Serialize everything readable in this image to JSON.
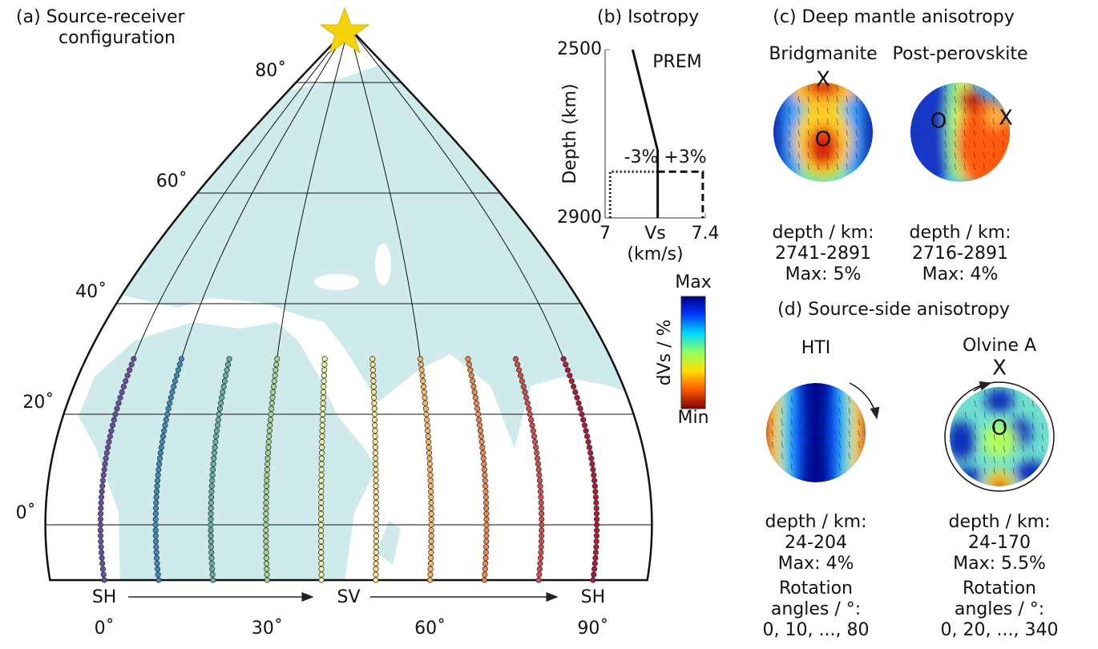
{
  "panel_a": {
    "title": [
      "(a) Source-receiver",
      "configuration"
    ],
    "xlim": [
      -10,
      100
    ],
    "ylim": [
      -10,
      90
    ],
    "lat_ticks": [
      {
        "value": 0,
        "label": "0˚"
      },
      {
        "value": 20,
        "label": "20˚"
      },
      {
        "value": 40,
        "label": "40˚"
      },
      {
        "value": 60,
        "label": "60˚"
      },
      {
        "value": 80,
        "label": "80˚"
      }
    ],
    "lon_ticks": [
      {
        "value": 0,
        "label": "0˚"
      },
      {
        "value": 30,
        "label": "30˚"
      },
      {
        "value": 60,
        "label": "60˚"
      },
      {
        "value": 90,
        "label": "90˚"
      }
    ],
    "station_lat": [
      -10,
      30
    ],
    "stations": [
      {
        "lon": 0,
        "color": "#6a4fa8"
      },
      {
        "lon": 10,
        "color": "#3d8cc0"
      },
      {
        "lon": 20,
        "color": "#62b3a0"
      },
      {
        "lon": 30,
        "color": "#a9d68f"
      },
      {
        "lon": 40,
        "color": "#eef2a2"
      },
      {
        "lon": 50,
        "color": "#fde68e"
      },
      {
        "lon": 60,
        "color": "#fdb865"
      },
      {
        "lon": 70,
        "color": "#f4874b"
      },
      {
        "lon": 80,
        "color": "#dc4b4a"
      },
      {
        "lon": 90,
        "color": "#b3173c"
      }
    ],
    "polarization": [
      "SH",
      "SV",
      "SH"
    ]
  },
  "panel_b": {
    "title": "(b) Isotropy",
    "xlim": [
      7,
      7.4
    ],
    "ylim": [
      2500,
      2900
    ],
    "xticks": [
      7,
      7.4
    ],
    "yticks": [
      2500,
      2900
    ],
    "x_label": [
      "Vs",
      "(km/s)"
    ],
    "y_label": "Depth  (km)",
    "series": [
      {
        "name": "PREM",
        "style": "solid",
        "vs": [
          7.11,
          7.21,
          7.21
        ],
        "depth": [
          2500,
          2740,
          2900
        ]
      },
      {
        "name": "-3%",
        "style": "dotted",
        "vs": [
          7.21,
          7.02,
          7.02
        ],
        "depth": [
          2790,
          2790,
          2900
        ]
      },
      {
        "name": "+3%",
        "style": "dashed",
        "vs": [
          7.21,
          7.39,
          7.39
        ],
        "depth": [
          2790,
          2790,
          2900
        ]
      }
    ]
  },
  "colorbar": {
    "label": "dVs / %",
    "max": "Max",
    "min": "Min"
  },
  "panel_c": {
    "title": "(c) Deep mantle anisotropy",
    "models": [
      {
        "name": "Bridgmanite",
        "markers": [
          "X",
          "O"
        ],
        "caption": [
          "depth / km:",
          "2741-2891",
          "Max: 5%"
        ]
      },
      {
        "name": "Post-perovskite",
        "markers": [
          "O",
          "X"
        ],
        "caption": [
          "depth / km:",
          "2716-2891",
          "Max: 4%"
        ]
      }
    ]
  },
  "panel_d": {
    "title": "(d) Source-side anisotropy",
    "models": [
      {
        "name": "HTI",
        "markers": [],
        "caption": [
          "depth / km:",
          "24-204",
          "Max: 4%",
          "Rotation",
          "angles / °:",
          "0, 10, ..., 80"
        ]
      },
      {
        "name": "Olvine A",
        "markers": [
          "X",
          "O"
        ],
        "caption": [
          "depth / km:",
          "24-170",
          "Max: 5.5%",
          "Rotation",
          "angles / °:",
          "0, 20, ..., 340"
        ]
      }
    ]
  }
}
